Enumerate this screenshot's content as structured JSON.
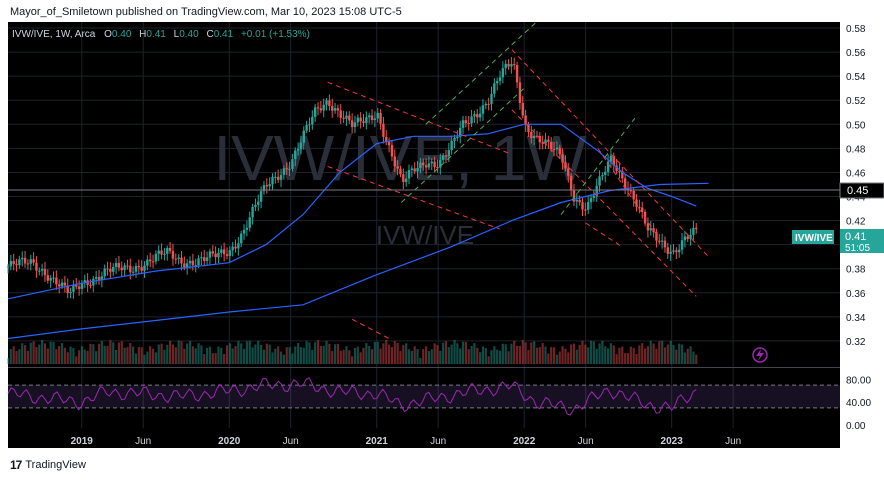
{
  "header": {
    "publish_line": "Mayor_of_Smiletown published on TradingView.com, Mar 10, 2023 15:08 UTC-5"
  },
  "footer": {
    "brand": "TradingView",
    "logo_icon": "tv-logo-icon"
  },
  "legend": {
    "symbol": "IVW/IVE, 1W, Arca",
    "o_label": "O",
    "o_value": "0.40",
    "h_label": "H",
    "h_value": "0.41",
    "l_label": "L",
    "l_value": "0.40",
    "c_label": "C",
    "c_value": "0.41",
    "change": "+0.01 (+1.53%)"
  },
  "watermark": {
    "big": "IVW/IVE, 1W",
    "small": "IVW/IVE"
  },
  "price_badge": {
    "symbol": "IVW/IVE",
    "value": "0.41",
    "countdown": "51:05"
  },
  "level_label": "0.45",
  "colors": {
    "up": "#26a69a",
    "down": "#ef5350",
    "ma_blue": "#2962ff",
    "channel_green": "#4caf50",
    "channel_red": "#f23645",
    "rsi": "#9c27b0",
    "bg": "#000000",
    "axis_text": "#d1d4dc"
  },
  "chart_data": {
    "type": "candlestick",
    "title": "",
    "y_range": [
      0.3,
      0.585
    ],
    "y_ticks": [
      "0.58",
      "0.56",
      "0.54",
      "0.52",
      "0.50",
      "0.48",
      "0.46",
      "0.44",
      "0.42",
      "0.40",
      "0.38",
      "0.36",
      "0.34",
      "0.32"
    ],
    "x_ticks": [
      "2019",
      "Jun",
      "2020",
      "Jun",
      "2021",
      "Jun",
      "2022",
      "Jun",
      "2023",
      "Jun"
    ],
    "x_tick_values": [
      "2019-01",
      "2019-06",
      "2020-01",
      "2020-06",
      "2021-01",
      "2021-06",
      "2022-01",
      "2022-06",
      "2023-01",
      "2023-06"
    ],
    "x_range": [
      "2018-07",
      "2023-09"
    ],
    "close_path": [
      [
        "2018-07",
        0.382
      ],
      [
        "2018-09",
        0.385
      ],
      [
        "2018-10",
        0.378
      ],
      [
        "2018-12",
        0.358
      ],
      [
        "2019-01",
        0.368
      ],
      [
        "2019-03",
        0.378
      ],
      [
        "2019-05",
        0.38
      ],
      [
        "2019-07",
        0.39
      ],
      [
        "2019-08",
        0.392
      ],
      [
        "2019-09",
        0.386
      ],
      [
        "2019-11",
        0.388
      ],
      [
        "2019-12",
        0.39
      ],
      [
        "2020-01",
        0.395
      ],
      [
        "2020-02",
        0.41
      ],
      [
        "2020-03",
        0.43
      ],
      [
        "2020-04",
        0.448
      ],
      [
        "2020-06",
        0.47
      ],
      [
        "2020-07",
        0.49
      ],
      [
        "2020-08",
        0.51
      ],
      [
        "2020-09",
        0.52
      ],
      [
        "2020-10",
        0.51
      ],
      [
        "2020-11",
        0.498
      ],
      [
        "2020-12",
        0.502
      ],
      [
        "2021-01",
        0.51
      ],
      [
        "2021-02",
        0.48
      ],
      [
        "2021-03",
        0.45
      ],
      [
        "2021-04",
        0.462
      ],
      [
        "2021-05",
        0.47
      ],
      [
        "2021-06",
        0.468
      ],
      [
        "2021-07",
        0.48
      ],
      [
        "2021-08",
        0.5
      ],
      [
        "2021-09",
        0.51
      ],
      [
        "2021-10",
        0.52
      ],
      [
        "2021-11",
        0.54
      ],
      [
        "2021-12",
        0.552
      ],
      [
        "2022-01",
        0.5
      ],
      [
        "2022-02",
        0.488
      ],
      [
        "2022-03",
        0.48
      ],
      [
        "2022-04",
        0.472
      ],
      [
        "2022-05",
        0.44
      ],
      [
        "2022-06",
        0.43
      ],
      [
        "2022-07",
        0.45
      ],
      [
        "2022-08",
        0.472
      ],
      [
        "2022-09",
        0.455
      ],
      [
        "2022-10",
        0.435
      ],
      [
        "2022-11",
        0.41
      ],
      [
        "2022-12",
        0.402
      ],
      [
        "2023-01",
        0.395
      ],
      [
        "2023-02",
        0.405
      ],
      [
        "2023-03",
        0.41
      ]
    ],
    "ma_fast": [
      [
        "2018-07",
        0.355
      ],
      [
        "2019-01",
        0.368
      ],
      [
        "2019-07",
        0.378
      ],
      [
        "2020-01",
        0.385
      ],
      [
        "2020-04",
        0.4
      ],
      [
        "2020-07",
        0.425
      ],
      [
        "2020-10",
        0.46
      ],
      [
        "2021-01",
        0.484
      ],
      [
        "2021-04",
        0.49
      ],
      [
        "2021-07",
        0.49
      ],
      [
        "2021-10",
        0.492
      ],
      [
        "2022-01",
        0.5
      ],
      [
        "2022-04",
        0.5
      ],
      [
        "2022-07",
        0.478
      ],
      [
        "2022-09",
        0.46
      ],
      [
        "2022-11",
        0.447
      ],
      [
        "2023-01",
        0.44
      ],
      [
        "2023-03",
        0.432
      ]
    ],
    "ma_slow": [
      [
        "2018-07",
        0.322
      ],
      [
        "2019-01",
        0.33
      ],
      [
        "2019-07",
        0.337
      ],
      [
        "2020-01",
        0.344
      ],
      [
        "2020-07",
        0.35
      ],
      [
        "2021-01",
        0.375
      ],
      [
        "2021-07",
        0.398
      ],
      [
        "2021-12",
        0.42
      ],
      [
        "2022-04",
        0.435
      ],
      [
        "2022-08",
        0.445
      ],
      [
        "2022-12",
        0.45
      ],
      [
        "2023-04",
        0.451
      ]
    ],
    "rsi_range": [
      0,
      100
    ],
    "rsi_ticks": [
      "80.00",
      "40.00",
      "0.00"
    ],
    "rsi_tick_values": [
      80,
      40,
      0
    ],
    "rsi_band": [
      30,
      70
    ],
    "rsi_path": [
      [
        "2018-07",
        55
      ],
      [
        "2018-11",
        45
      ],
      [
        "2019-01",
        40
      ],
      [
        "2019-03",
        58
      ],
      [
        "2019-06",
        55
      ],
      [
        "2019-09",
        50
      ],
      [
        "2020-01",
        60
      ],
      [
        "2020-04",
        70
      ],
      [
        "2020-07",
        72
      ],
      [
        "2020-10",
        58
      ],
      [
        "2021-01",
        55
      ],
      [
        "2021-03",
        35
      ],
      [
        "2021-06",
        48
      ],
      [
        "2021-09",
        60
      ],
      [
        "2021-12",
        68
      ],
      [
        "2022-02",
        40
      ],
      [
        "2022-05",
        28
      ],
      [
        "2022-08",
        62
      ],
      [
        "2022-11",
        35
      ],
      [
        "2023-01",
        30
      ],
      [
        "2023-03",
        60
      ]
    ]
  }
}
